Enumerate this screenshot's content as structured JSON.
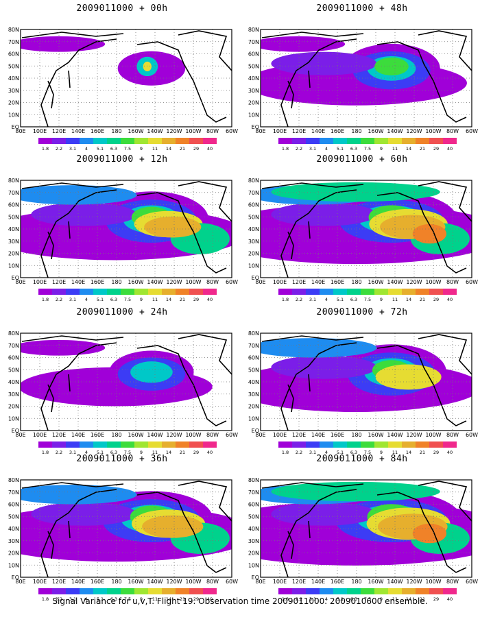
{
  "footer": "Signal Variance for u,v,T. Flight 19. Observation time 2009011000. 2009010600 ensemble.",
  "colorbar": {
    "labels": [
      "1.8",
      "2.2",
      "3.1",
      "4",
      "5.1",
      "6.3",
      "7.5",
      "9",
      "11",
      "14",
      "21",
      "29",
      "40"
    ],
    "colors": [
      "#a000d8",
      "#7b1ee8",
      "#3c3cf5",
      "#1e8cf0",
      "#00c8c8",
      "#00d28c",
      "#3cdc3c",
      "#a0e632",
      "#e6dc32",
      "#e6af2d",
      "#f08228",
      "#f05050",
      "#f0288c"
    ]
  },
  "map": {
    "lon_ticks": [
      "80E",
      "100E",
      "120E",
      "140E",
      "160E",
      "180",
      "160W",
      "140W",
      "120W",
      "100W",
      "80W",
      "60W"
    ],
    "lat_ticks": [
      "EQ",
      "10N",
      "20N",
      "30N",
      "40N",
      "50N",
      "60N",
      "70N",
      "80N"
    ]
  },
  "panels": [
    {
      "title": "2009011000 + 00h"
    },
    {
      "title": "2009011000 + 48h"
    },
    {
      "title": "2009011000 + 12h"
    },
    {
      "title": "2009011000 + 60h"
    },
    {
      "title": "2009011000 + 24h"
    },
    {
      "title": "2009011000 + 72h"
    },
    {
      "title": "2009011000 + 36h"
    },
    {
      "title": "2009011000 + 84h"
    }
  ],
  "chart_data": {
    "type": "heatmap",
    "panel_count": 8,
    "lead_times_h": [
      0,
      12,
      24,
      36,
      48,
      60,
      72,
      84
    ],
    "lon_range": [
      "80E",
      "60W"
    ],
    "lat_range": [
      "EQ",
      "80N"
    ],
    "grid": true
  }
}
